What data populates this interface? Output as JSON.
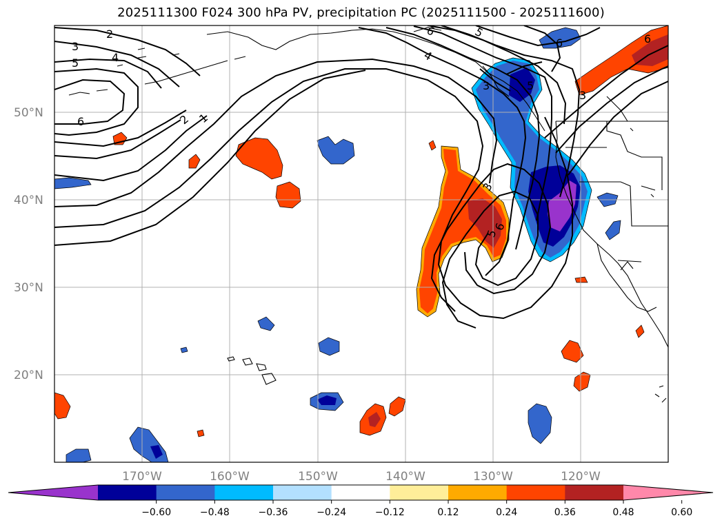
{
  "title": "2025111300 F024 300 hPa PV, precipitation PC (2025111500 - 2025111600)",
  "lat_labels": [
    "50°N",
    "40°N",
    "30°N",
    "20°N"
  ],
  "lon_labels": [
    "170°W",
    "160°W",
    "150°W",
    "140°W",
    "130°W",
    "120°W"
  ],
  "contour_labels": [
    "2",
    "3",
    "4",
    "5",
    "6",
    "2",
    "1",
    "4",
    "6",
    "5",
    "3",
    "5",
    "6",
    "3",
    "6",
    "5",
    "6",
    "3"
  ],
  "colorbar": {
    "ticks": [
      "−0.60",
      "−0.48",
      "−0.36",
      "−0.24",
      "−0.12",
      "0.12",
      "0.24",
      "0.36",
      "0.48",
      "0.60"
    ],
    "colors": [
      "#9933cc",
      "#000099",
      "#3366cc",
      "#00bbff",
      "#b3e0ff",
      "#ffffff",
      "#ffee99",
      "#ffaa00",
      "#ff4400",
      "#b32222",
      "#ff88aa"
    ]
  },
  "colors": {
    "purple": "#9933cc",
    "navy": "#000099",
    "blue": "#3366cc",
    "cyan": "#00bbff",
    "lightblue": "#b3e0ff",
    "yellow": "#ffee99",
    "orange": "#ffaa00",
    "redorange": "#ff4400",
    "darkred": "#b32222",
    "pink": "#ff88aa"
  }
}
